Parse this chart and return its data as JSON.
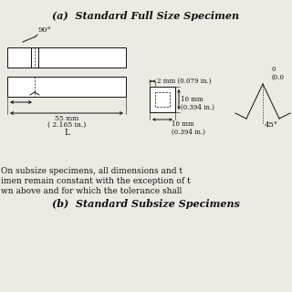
{
  "title_a": "(a)  Standard Full Size Specimen",
  "title_b": "(b)  Standard Subsize Specimens",
  "bg_color": "#ede9e3",
  "text_color": "#111111",
  "body_line1": "On subsize specimens, all dimensions and t",
  "body_line2": "imen remain constant with the exception of t",
  "body_line3": "wn above and for which the tolerance shall",
  "dim_2mm": "2 mm (0.079 in.)",
  "dim_10mm_h": "10 mm\n(0.394 in.)",
  "dim_10mm_w": "10 mm\n(0.394 in.)",
  "dim_55mm": "55 mm",
  "dim_55mm_in": "( 2.165 in.)",
  "dim_L": "L",
  "dim_45": "45°",
  "dim_90": "90°",
  "lw": 0.7
}
